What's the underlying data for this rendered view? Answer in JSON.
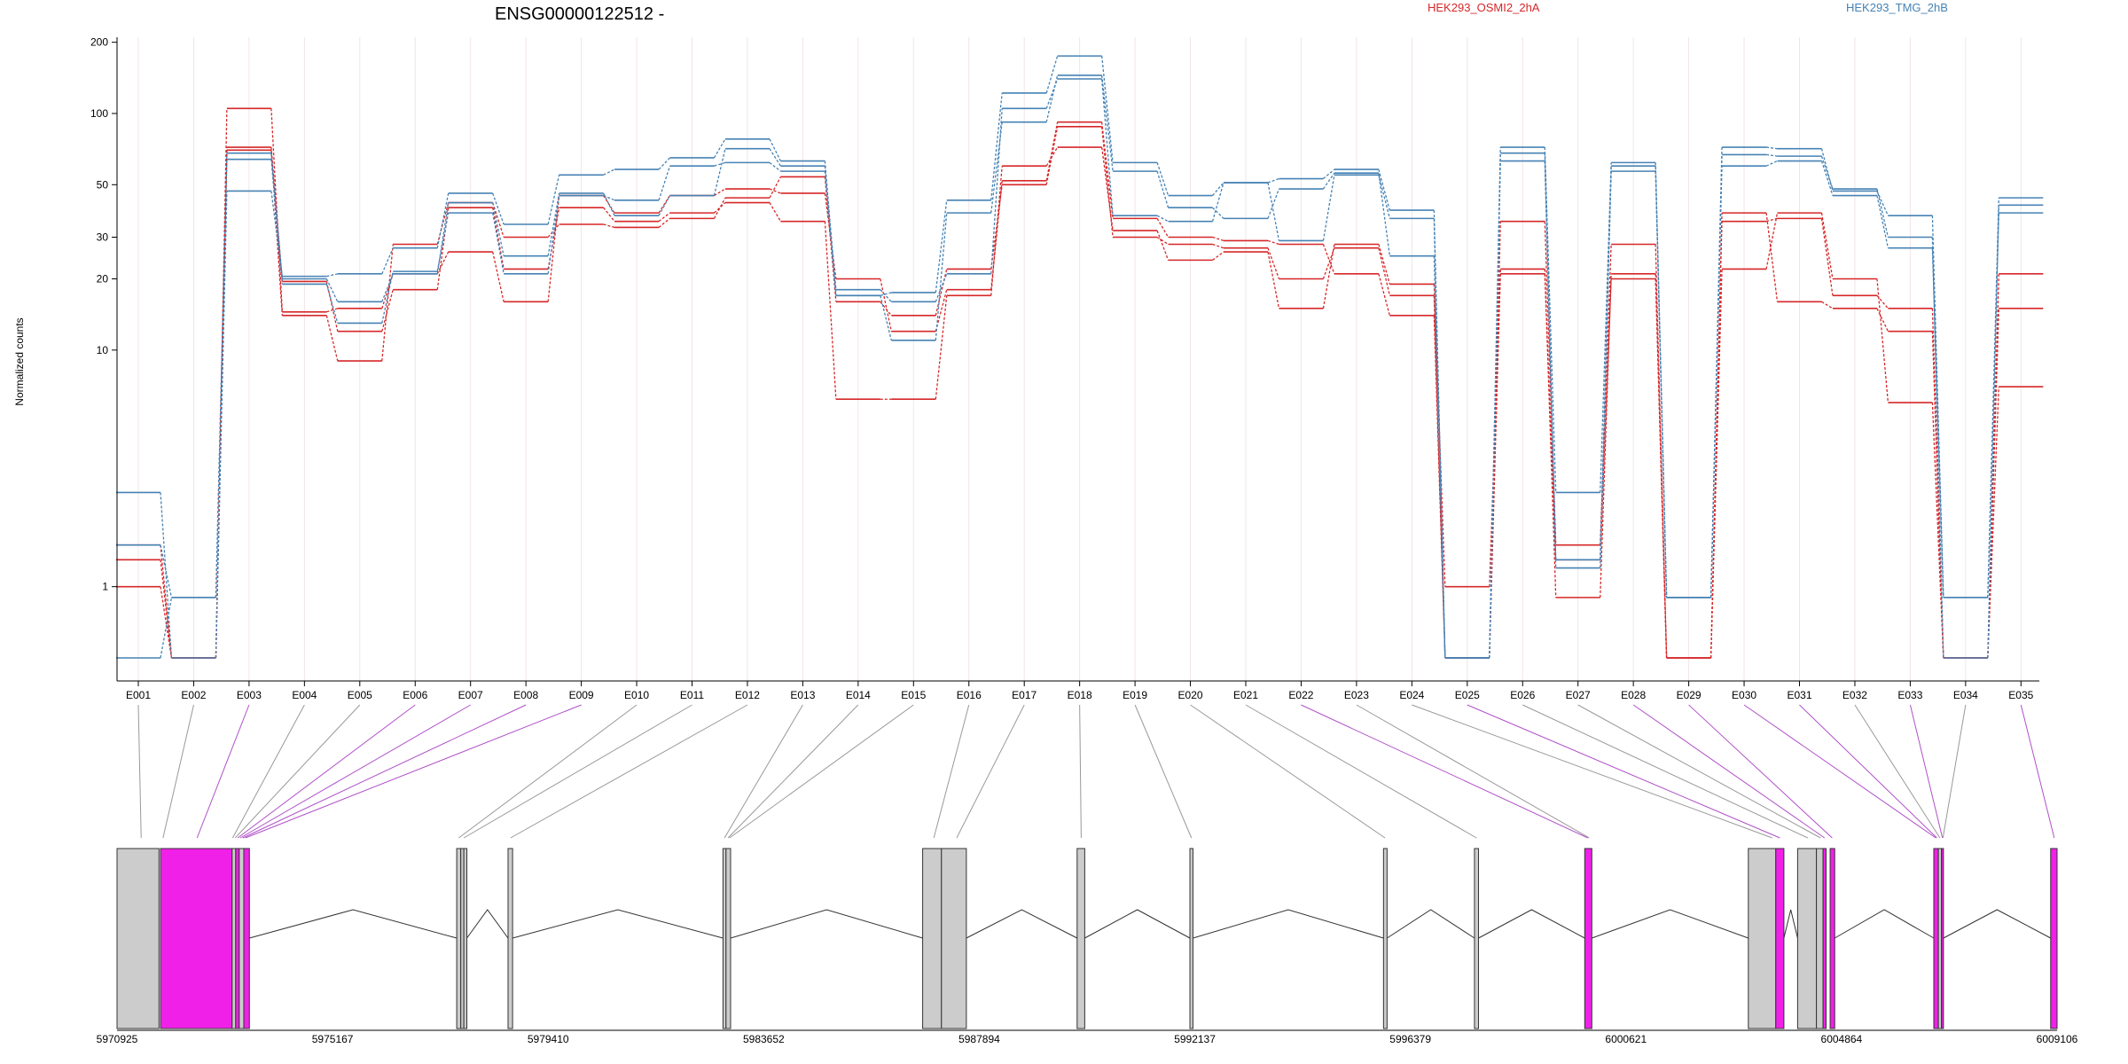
{
  "chart_data": {
    "type": "line",
    "title": "ENSG00000122512 -",
    "ylabel": "Normalized counts",
    "xlabel": "",
    "yscale": "log",
    "ylim": [
      0.5,
      210
    ],
    "yticks": [
      1,
      10,
      20,
      30,
      50,
      100,
      200
    ],
    "grid": true,
    "legend": [
      {
        "label": "HEK293_OSMI2_2hA",
        "color": "#d62728"
      },
      {
        "label": "HEK293_TMG_2hB",
        "color": "#4682b4"
      }
    ],
    "categories": [
      "E001",
      "E002",
      "E003",
      "E004",
      "E005",
      "E006",
      "E007",
      "E008",
      "E009",
      "E010",
      "E011",
      "E012",
      "E013",
      "E014",
      "E015",
      "E016",
      "E017",
      "E018",
      "E019",
      "E020",
      "E021",
      "E022",
      "E023",
      "E024",
      "E025",
      "E026",
      "E027",
      "E028",
      "E029",
      "E030",
      "E031",
      "E032",
      "E033",
      "E034",
      "E035"
    ],
    "series": [
      {
        "group": "HEK293_OSMI2_2hA",
        "color": "#d62728",
        "values": [
          1.0,
          0.5,
          105,
          14.5,
          15.0,
          21.0,
          26.0,
          16.0,
          45.0,
          38.0,
          45.0,
          48.0,
          46.0,
          20.0,
          12.0,
          18.0,
          52.0,
          92.0,
          36.0,
          30.0,
          29.0,
          28.0,
          21.0,
          14.0,
          0.5,
          22.0,
          0.9,
          21.0,
          0.5,
          22.0,
          38.0,
          20.0,
          6.0,
          0.5,
          21.0
        ]
      },
      {
        "group": "HEK293_OSMI2_2hA",
        "color": "#d62728",
        "values": [
          1.3,
          0.5,
          72,
          19.5,
          12.0,
          18.0,
          40.0,
          22.0,
          40.0,
          35.0,
          38.0,
          42.0,
          35.0,
          6.2,
          6.2,
          17.0,
          60.0,
          72.0,
          32.0,
          24.0,
          26.0,
          15.0,
          28.0,
          19.0,
          1.0,
          21.0,
          1.3,
          20.0,
          0.5,
          38.0,
          16.0,
          15.0,
          12.0,
          0.5,
          15.0
        ]
      },
      {
        "group": "HEK293_OSMI2_2hA",
        "color": "#d62728",
        "values": [
          1.5,
          0.5,
          70,
          14.0,
          9.0,
          28.0,
          42.0,
          30.0,
          34.0,
          33.0,
          36.0,
          44.0,
          54.0,
          16.0,
          14.0,
          22.0,
          50.0,
          88.0,
          30.0,
          28.0,
          27.0,
          20.0,
          27.0,
          17.0,
          0.5,
          35.0,
          1.5,
          28.0,
          0.5,
          35.0,
          36.0,
          17.0,
          15.0,
          0.5,
          7.0
        ]
      },
      {
        "group": "HEK293_TMG_2hB",
        "color": "#4682b4",
        "values": [
          2.5,
          0.5,
          47,
          20.5,
          21.0,
          27.0,
          46.0,
          34.0,
          55.0,
          58.0,
          65.0,
          78.0,
          63.0,
          17.0,
          17.5,
          43.0,
          122.0,
          175.0,
          62.0,
          45.0,
          51.0,
          53.0,
          58.0,
          39.0,
          0.5,
          72.0,
          2.5,
          62.0,
          0.9,
          72.0,
          71.0,
          47.0,
          37.0,
          0.9,
          44.0
        ]
      },
      {
        "group": "HEK293_TMG_2hB",
        "color": "#4682b4",
        "values": [
          1.5,
          0.9,
          64,
          19.0,
          13.0,
          21.5,
          38.0,
          21.0,
          45.0,
          43.0,
          60.0,
          62.0,
          57.0,
          17.0,
          11.0,
          38.0,
          92.0,
          145.0,
          57.0,
          40.0,
          36.0,
          48.0,
          56.0,
          25.0,
          0.5,
          63.0,
          1.2,
          57.0,
          0.9,
          60.0,
          63.0,
          45.0,
          27.0,
          0.9,
          38.0
        ]
      },
      {
        "group": "HEK293_TMG_2hB",
        "color": "#4682b4",
        "values": [
          0.5,
          0.9,
          68,
          20.0,
          16.0,
          21.0,
          42.0,
          25.0,
          46.0,
          37.0,
          45.0,
          71.0,
          60.0,
          18.0,
          16.0,
          21.0,
          105.0,
          140.0,
          37.0,
          35.0,
          51.0,
          29.0,
          55.0,
          36.0,
          0.5,
          68.0,
          1.3,
          60.0,
          0.9,
          67.0,
          66.0,
          48.0,
          30.0,
          0.5,
          41.0
        ]
      }
    ]
  },
  "gene_model": {
    "coordinate_labels": [
      "5970925",
      "5975167",
      "5979410",
      "5983652",
      "5987894",
      "5992137",
      "5996379",
      "6000621",
      "6004864",
      "6009106"
    ],
    "coordinate_range": [
      5970925,
      6009106
    ],
    "highlight_color": "#f020e8",
    "exon_color": "#cccccc",
    "exons": [
      {
        "start": 5970925,
        "end": 5971750,
        "highlight": false
      },
      {
        "start": 5971780,
        "end": 5973190,
        "highlight": true
      },
      {
        "start": 5973190,
        "end": 5973260,
        "highlight": false
      },
      {
        "start": 5973260,
        "end": 5973330,
        "highlight": true
      },
      {
        "start": 5973330,
        "end": 5973420,
        "highlight": false
      },
      {
        "start": 5973420,
        "end": 5973530,
        "highlight": true
      },
      {
        "start": 5977610,
        "end": 5977690,
        "highlight": false
      },
      {
        "start": 5977690,
        "end": 5977750,
        "highlight": false
      },
      {
        "start": 5977750,
        "end": 5977810,
        "highlight": false
      },
      {
        "start": 5978620,
        "end": 5978710,
        "highlight": false
      },
      {
        "start": 5982850,
        "end": 5982910,
        "highlight": false
      },
      {
        "start": 5982910,
        "end": 5983000,
        "highlight": false
      },
      {
        "start": 5986780,
        "end": 5987150,
        "highlight": false
      },
      {
        "start": 5987150,
        "end": 5987640,
        "highlight": false
      },
      {
        "start": 5989820,
        "end": 5989970,
        "highlight": false
      },
      {
        "start": 5992040,
        "end": 5992100,
        "highlight": false
      },
      {
        "start": 5995850,
        "end": 5995920,
        "highlight": false
      },
      {
        "start": 5997640,
        "end": 5997720,
        "highlight": false
      },
      {
        "start": 5999810,
        "end": 5999950,
        "highlight": true
      },
      {
        "start": 6003030,
        "end": 6003570,
        "highlight": false
      },
      {
        "start": 6003570,
        "end": 6003730,
        "highlight": true
      },
      {
        "start": 6004000,
        "end": 6004370,
        "highlight": false
      },
      {
        "start": 6004370,
        "end": 6004500,
        "highlight": false
      },
      {
        "start": 6004500,
        "end": 6004560,
        "highlight": true
      },
      {
        "start": 6004640,
        "end": 6004730,
        "highlight": true
      },
      {
        "start": 6006680,
        "end": 6006770,
        "highlight": true
      },
      {
        "start": 6006770,
        "end": 6006830,
        "highlight": false
      },
      {
        "start": 6006830,
        "end": 6006870,
        "highlight": true
      },
      {
        "start": 6008980,
        "end": 6009106,
        "highlight": true
      }
    ],
    "introns": [
      {
        "start": 5973530,
        "end": 5977610
      },
      {
        "start": 5977810,
        "end": 5978620
      },
      {
        "start": 5978710,
        "end": 5982850
      },
      {
        "start": 5983000,
        "end": 5986780
      },
      {
        "start": 5987640,
        "end": 5989820
      },
      {
        "start": 5989970,
        "end": 5992040
      },
      {
        "start": 5992100,
        "end": 5995850
      },
      {
        "start": 5995920,
        "end": 5997640
      },
      {
        "start": 5997720,
        "end": 5999810
      },
      {
        "start": 5999950,
        "end": 6003030
      },
      {
        "start": 6003730,
        "end": 6004000
      },
      {
        "start": 6004730,
        "end": 6006680
      },
      {
        "start": 6006870,
        "end": 6008980
      }
    ],
    "connectors": [
      {
        "bin": "E001",
        "to": 5971400,
        "highlight": false
      },
      {
        "bin": "E002",
        "to": 5971830,
        "highlight": false
      },
      {
        "bin": "E003",
        "to": 5972500,
        "highlight": true
      },
      {
        "bin": "E004",
        "to": 5973200,
        "highlight": false
      },
      {
        "bin": "E005",
        "to": 5973250,
        "highlight": false
      },
      {
        "bin": "E006",
        "to": 5973300,
        "highlight": true
      },
      {
        "bin": "E007",
        "to": 5973350,
        "highlight": true
      },
      {
        "bin": "E008",
        "to": 5973400,
        "highlight": true
      },
      {
        "bin": "E009",
        "to": 5973450,
        "highlight": true
      },
      {
        "bin": "E010",
        "to": 5977650,
        "highlight": false
      },
      {
        "bin": "E011",
        "to": 5977750,
        "highlight": false
      },
      {
        "bin": "E012",
        "to": 5978670,
        "highlight": false
      },
      {
        "bin": "E013",
        "to": 5982880,
        "highlight": false
      },
      {
        "bin": "E014",
        "to": 5982950,
        "highlight": false
      },
      {
        "bin": "E015",
        "to": 5982980,
        "highlight": false
      },
      {
        "bin": "E016",
        "to": 5987000,
        "highlight": false
      },
      {
        "bin": "E017",
        "to": 5987450,
        "highlight": false
      },
      {
        "bin": "E018",
        "to": 5989900,
        "highlight": false
      },
      {
        "bin": "E019",
        "to": 5992070,
        "highlight": false
      },
      {
        "bin": "E020",
        "to": 5995880,
        "highlight": false
      },
      {
        "bin": "E021",
        "to": 5997680,
        "highlight": false
      },
      {
        "bin": "E022",
        "to": 5999870,
        "highlight": true
      },
      {
        "bin": "E023",
        "to": 5999900,
        "highlight": false
      },
      {
        "bin": "E024",
        "to": 6003500,
        "highlight": false
      },
      {
        "bin": "E025",
        "to": 6003650,
        "highlight": true
      },
      {
        "bin": "E026",
        "to": 6004200,
        "highlight": false
      },
      {
        "bin": "E027",
        "to": 6004450,
        "highlight": false
      },
      {
        "bin": "E028",
        "to": 6004530,
        "highlight": true
      },
      {
        "bin": "E029",
        "to": 6004680,
        "highlight": true
      },
      {
        "bin": "E030",
        "to": 6006720,
        "highlight": true
      },
      {
        "bin": "E031",
        "to": 6006740,
        "highlight": true
      },
      {
        "bin": "E032",
        "to": 6006800,
        "highlight": false
      },
      {
        "bin": "E033",
        "to": 6006850,
        "highlight": true
      },
      {
        "bin": "E034",
        "to": 6006860,
        "highlight": false
      },
      {
        "bin": "E035",
        "to": 6009050,
        "highlight": true
      }
    ]
  }
}
